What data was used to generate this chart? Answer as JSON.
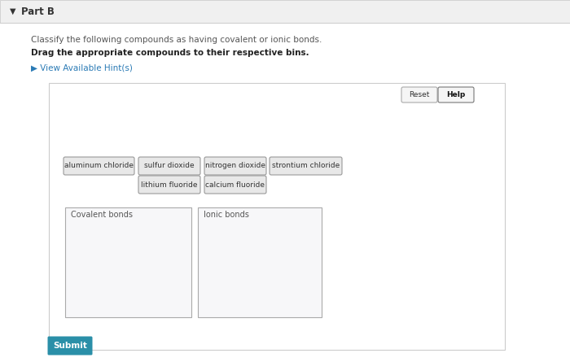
{
  "title": "Part B",
  "instruction1": "Classify the following compounds as having covalent or ionic bonds.",
  "instruction2": "Drag the appropriate compounds to their respective bins.",
  "hint_text": "▶ View Available Hint(s)",
  "compounds_row1": [
    "aluminum chloride",
    "sulfur dioxide",
    "nitrogen dioxide",
    "strontium chloride"
  ],
  "compounds_row2": [
    "lithium fluoride",
    "calcium fluoride"
  ],
  "bin_labels": [
    "Covalent bonds",
    "Ionic bonds"
  ],
  "reset_btn": "Reset",
  "help_btn": "Help",
  "submit_btn": "Submit",
  "outer_bg": "#f0f0f0",
  "page_bg": "#ffffff",
  "panel_bg": "#ffffff",
  "panel_border": "#cccccc",
  "chip_bg": "#e8e8e8",
  "chip_border": "#999999",
  "bin_bg": "#f7f7f9",
  "bin_border": "#aaaaaa",
  "header_bg": "#f0f0f0",
  "header_border": "#cccccc",
  "submit_bg": "#2a8fa8",
  "submit_text": "#ffffff",
  "hint_color": "#2a7ab5",
  "title_color": "#333333",
  "text_color": "#555555",
  "bold_color": "#222222",
  "reset_bg": "#f5f5f5",
  "help_bg": "#f5f5f5",
  "help_border": "#777777"
}
